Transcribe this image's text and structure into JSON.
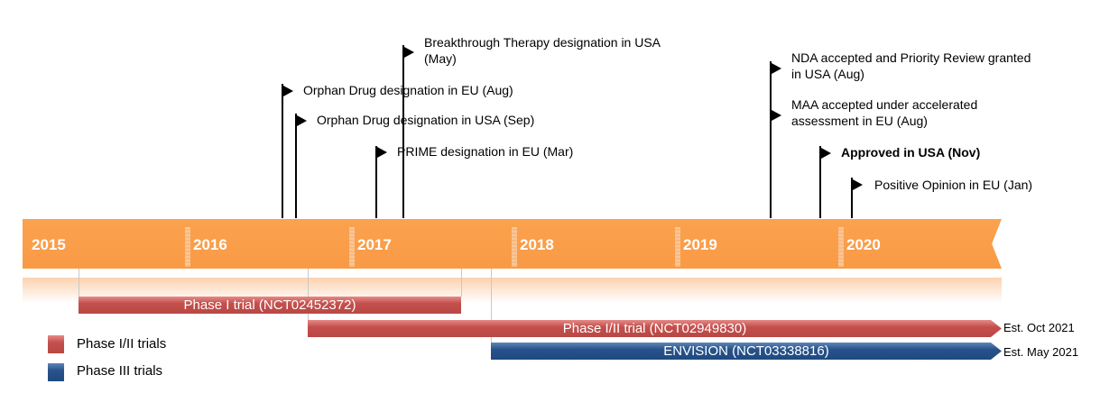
{
  "timeline": {
    "years": [
      "2015",
      "2016",
      "2017",
      "2018",
      "2019",
      "2020"
    ],
    "bar_color": "#fba24e"
  },
  "milestones": [
    {
      "text": "Orphan Drug designation in EU (Aug)"
    },
    {
      "text": "Orphan Drug designation in USA (Sep)"
    },
    {
      "text": "PRIME designation in EU (Mar)"
    },
    {
      "text": "Breakthrough Therapy designation in USA (May)",
      "line1": "Breakthrough Therapy designation in USA",
      "line2": "(May)"
    },
    {
      "line1": "NDA accepted and Priority Review granted",
      "line2": "in USA (Aug)"
    },
    {
      "line1": "MAA accepted under accelerated",
      "line2": "assessment in EU (Aug)"
    },
    {
      "text": "Approved in USA (Nov)",
      "bold": true
    },
    {
      "text": "Positive Opinion in EU (Jan)"
    }
  ],
  "trials": [
    {
      "label": "Phase I trial (NCT02452372)",
      "phase": "Phase I/II"
    },
    {
      "label": "Phase I/II trial (NCT02949830)",
      "phase": "Phase I/II",
      "end": "Est. Oct 2021"
    },
    {
      "label": "ENVISION (NCT03338816)",
      "phase": "Phase III",
      "end": "Est. May 2021"
    }
  ],
  "legend": [
    {
      "label": "Phase I/II trials",
      "color": "#c0504d"
    },
    {
      "label": "Phase III trials",
      "color": "#1f4e79"
    }
  ]
}
